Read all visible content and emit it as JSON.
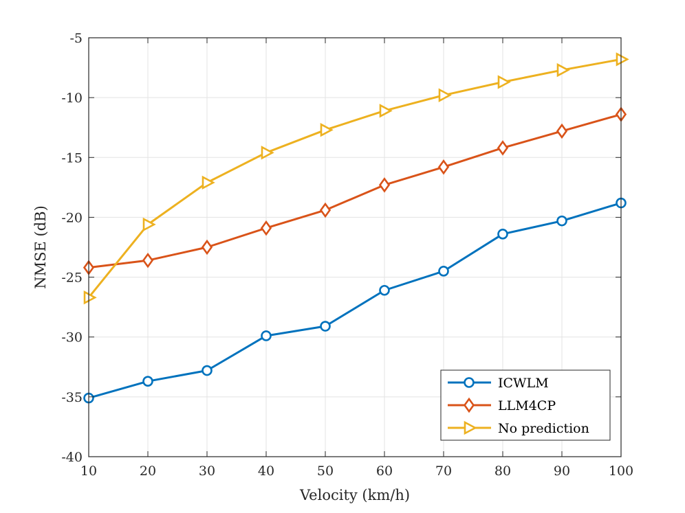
{
  "chart_data": {
    "type": "line",
    "title": "",
    "xlabel": "Velocity (km/h)",
    "ylabel": "NMSE (dB)",
    "xlim": [
      10,
      100
    ],
    "ylim": [
      -40,
      -5
    ],
    "grid": true,
    "legend_position": "bottom-right",
    "xticks": [
      10,
      20,
      30,
      40,
      50,
      60,
      70,
      80,
      90,
      100
    ],
    "yticks": [
      -40,
      -35,
      -30,
      -25,
      -20,
      -15,
      -10,
      -5
    ],
    "x": [
      10,
      20,
      30,
      40,
      50,
      60,
      70,
      80,
      90,
      100
    ],
    "series": [
      {
        "name": "ICWLM",
        "color": "#0072BD",
        "marker": "circle",
        "values": [
          -35.1,
          -33.7,
          -32.8,
          -29.9,
          -29.1,
          -26.1,
          -24.5,
          -21.4,
          -20.3,
          -18.8
        ]
      },
      {
        "name": "LLM4CP",
        "color": "#D95319",
        "marker": "diamond",
        "values": [
          -24.2,
          -23.6,
          -22.5,
          -20.9,
          -19.4,
          -17.3,
          -15.8,
          -14.2,
          -12.8,
          -11.4
        ]
      },
      {
        "name": "No prediction",
        "color": "#EDB120",
        "marker": "triangle-right",
        "values": [
          -26.7,
          -20.6,
          -17.1,
          -14.6,
          -12.7,
          -11.1,
          -9.8,
          -8.7,
          -7.7,
          -6.8
        ]
      }
    ]
  }
}
